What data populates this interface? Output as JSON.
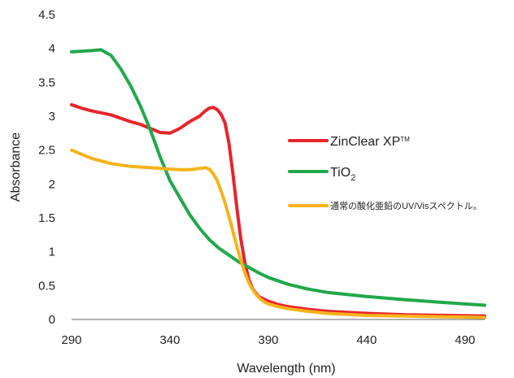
{
  "chart_data": {
    "type": "line",
    "title": "",
    "xlabel": "Wavelength (nm)",
    "ylabel": "Absorbance",
    "xlim": [
      290,
      500
    ],
    "ylim": [
      0,
      4.5
    ],
    "xticks": [
      290,
      340,
      390,
      440,
      490
    ],
    "xtick_labels": [
      "290",
      "340",
      "390",
      "440",
      "490"
    ],
    "yticks": [
      0,
      0.5,
      1,
      1.5,
      2,
      2.5,
      3,
      3.5,
      4,
      4.5
    ],
    "ytick_labels": [
      "0",
      "0.5",
      "1",
      "1.5",
      "2",
      "2.5",
      "3",
      "3.5",
      "4",
      "4.5"
    ],
    "grid": false,
    "legend_position": "right",
    "series": [
      {
        "name": "ZinClear XP",
        "name_suffix": "TM",
        "color": "#e8242c",
        "x": [
          290,
          295,
          300,
          305,
          310,
          315,
          320,
          325,
          330,
          335,
          340,
          345,
          350,
          355,
          358,
          360,
          362,
          364,
          366,
          368,
          370,
          372,
          374,
          376,
          378,
          380,
          382,
          385,
          390,
          395,
          400,
          410,
          420,
          440,
          460,
          480,
          500
        ],
        "y": [
          3.17,
          3.12,
          3.08,
          3.05,
          3.02,
          2.97,
          2.92,
          2.88,
          2.82,
          2.76,
          2.75,
          2.82,
          2.92,
          3.0,
          3.08,
          3.12,
          3.13,
          3.1,
          3.03,
          2.9,
          2.6,
          2.15,
          1.65,
          1.2,
          0.85,
          0.6,
          0.45,
          0.34,
          0.27,
          0.22,
          0.19,
          0.15,
          0.12,
          0.09,
          0.07,
          0.06,
          0.05
        ]
      },
      {
        "name": "TiO",
        "name_sub": "2",
        "color": "#21a84a",
        "x": [
          290,
          295,
          300,
          305,
          310,
          315,
          320,
          325,
          330,
          335,
          340,
          345,
          350,
          355,
          360,
          365,
          370,
          375,
          380,
          385,
          390,
          400,
          410,
          420,
          440,
          460,
          480,
          500
        ],
        "y": [
          3.95,
          3.96,
          3.97,
          3.98,
          3.9,
          3.7,
          3.45,
          3.15,
          2.8,
          2.4,
          2.05,
          1.8,
          1.55,
          1.35,
          1.18,
          1.05,
          0.95,
          0.85,
          0.77,
          0.69,
          0.62,
          0.52,
          0.45,
          0.4,
          0.34,
          0.29,
          0.25,
          0.21
        ]
      },
      {
        "name": "通常の酸化亜鉛のUV/Visスペクトル。",
        "color": "#f7b21b",
        "x": [
          290,
          300,
          310,
          320,
          330,
          340,
          345,
          350,
          355,
          358,
          360,
          362,
          364,
          366,
          368,
          370,
          372,
          374,
          376,
          378,
          380,
          382,
          384,
          386,
          388,
          390,
          395,
          400,
          410,
          420,
          440,
          460,
          480,
          500
        ],
        "y": [
          2.5,
          2.38,
          2.3,
          2.26,
          2.24,
          2.22,
          2.21,
          2.21,
          2.23,
          2.24,
          2.22,
          2.15,
          2.05,
          1.9,
          1.72,
          1.52,
          1.3,
          1.08,
          0.88,
          0.7,
          0.55,
          0.44,
          0.36,
          0.3,
          0.26,
          0.23,
          0.19,
          0.16,
          0.12,
          0.09,
          0.06,
          0.05,
          0.04,
          0.03
        ]
      }
    ]
  }
}
